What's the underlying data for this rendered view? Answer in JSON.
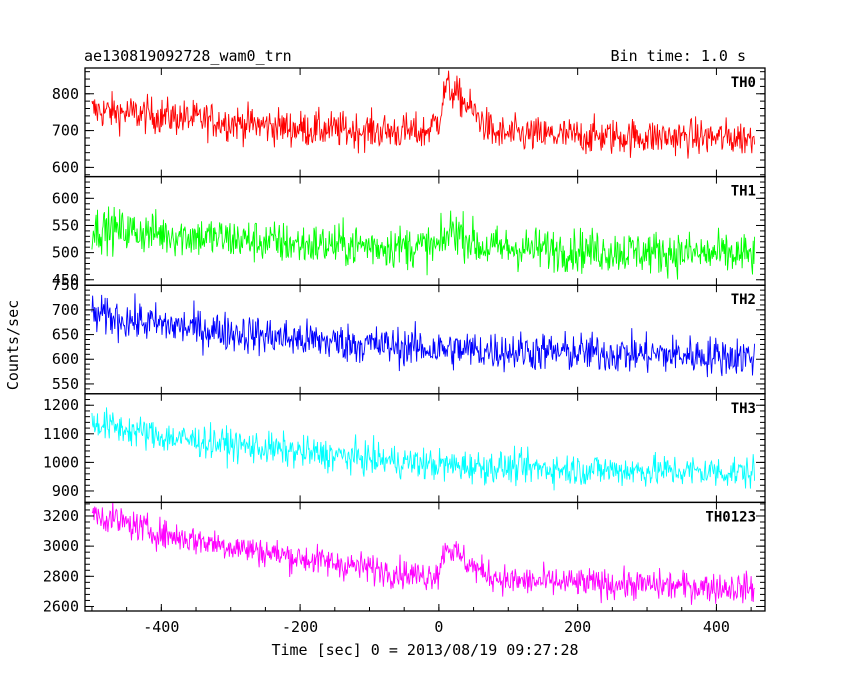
{
  "header": {
    "title": "ae130819092728_wam0_trn",
    "bin_time": "Bin time: 1.0 s"
  },
  "chart_data": {
    "type": "line",
    "xlabel": "Time [sec] 0 = 2013/08/19 09:27:28",
    "ylabel": "Counts/sec",
    "xlim": [
      -510,
      470
    ],
    "xticks": [
      -400,
      -200,
      0,
      200,
      400
    ],
    "x_start": -500,
    "x_end": 455,
    "bin_time": 1.0,
    "series": [
      {
        "name": "TH0",
        "color": "#ff0000",
        "ylim": [
          575,
          870
        ],
        "yticks": [
          600,
          700,
          800
        ],
        "trend": [
          [
            -500,
            755
          ],
          [
            -400,
            740
          ],
          [
            -200,
            705
          ],
          [
            -20,
            695
          ],
          [
            0,
            730
          ],
          [
            10,
            820
          ],
          [
            30,
            790
          ],
          [
            60,
            730
          ],
          [
            80,
            690
          ],
          [
            200,
            685
          ],
          [
            455,
            680
          ]
        ],
        "noise": 35
      },
      {
        "name": "TH1",
        "color": "#00ff00",
        "ylim": [
          440,
          640
        ],
        "yticks": [
          450,
          500,
          550,
          600
        ],
        "trend": [
          [
            -500,
            545
          ],
          [
            -400,
            535
          ],
          [
            -200,
            515
          ],
          [
            0,
            510
          ],
          [
            20,
            545
          ],
          [
            60,
            510
          ],
          [
            455,
            495
          ]
        ],
        "noise": 28
      },
      {
        "name": "TH2",
        "color": "#0000ff",
        "ylim": [
          530,
          750
        ],
        "yticks": [
          550,
          600,
          650,
          700,
          750
        ],
        "trend": [
          [
            -500,
            690
          ],
          [
            -400,
            670
          ],
          [
            -200,
            640
          ],
          [
            0,
            620
          ],
          [
            455,
            605
          ]
        ],
        "noise": 28
      },
      {
        "name": "TH3",
        "color": "#00ffff",
        "ylim": [
          860,
          1240
        ],
        "yticks": [
          900,
          1000,
          1100,
          1200
        ],
        "trend": [
          [
            -500,
            1140
          ],
          [
            -400,
            1090
          ],
          [
            -200,
            1035
          ],
          [
            0,
            990
          ],
          [
            200,
            975
          ],
          [
            455,
            965
          ]
        ],
        "noise": 40
      },
      {
        "name": "TH0123",
        "color": "#ff00ff",
        "ylim": [
          2570,
          3290
        ],
        "yticks": [
          2600,
          2800,
          3000,
          3200
        ],
        "trend": [
          [
            -500,
            3220
          ],
          [
            -400,
            3080
          ],
          [
            -200,
            2920
          ],
          [
            -20,
            2800
          ],
          [
            0,
            2830
          ],
          [
            10,
            3010
          ],
          [
            30,
            2930
          ],
          [
            60,
            2830
          ],
          [
            100,
            2770
          ],
          [
            455,
            2720
          ]
        ],
        "noise": 70
      }
    ]
  }
}
